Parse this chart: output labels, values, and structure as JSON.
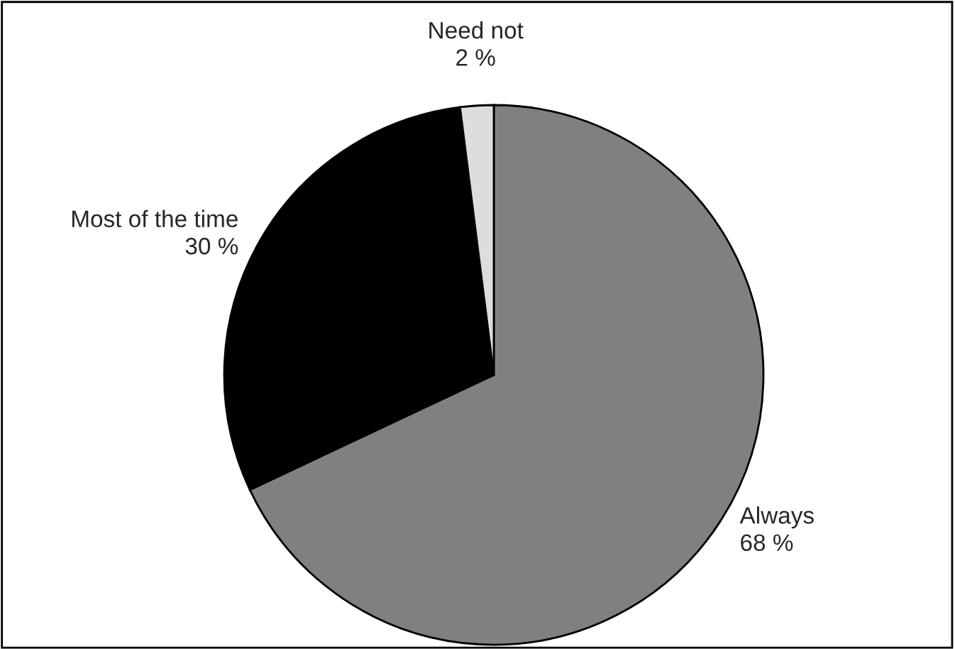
{
  "chart_data": {
    "type": "pie",
    "categories": [
      "Always",
      "Most of the time",
      "Need not"
    ],
    "values": [
      68,
      30,
      2
    ],
    "value_labels": [
      "68 %",
      "30 %",
      "2 %"
    ],
    "colors": [
      "#808080",
      "#000000",
      "#dddddd"
    ],
    "legend": false
  }
}
